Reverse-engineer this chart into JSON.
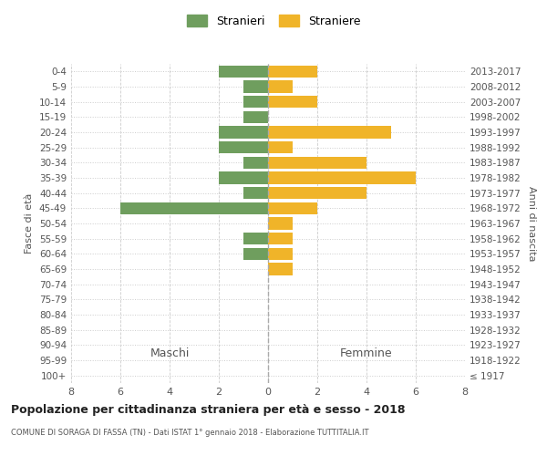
{
  "age_groups": [
    "100+",
    "95-99",
    "90-94",
    "85-89",
    "80-84",
    "75-79",
    "70-74",
    "65-69",
    "60-64",
    "55-59",
    "50-54",
    "45-49",
    "40-44",
    "35-39",
    "30-34",
    "25-29",
    "20-24",
    "15-19",
    "10-14",
    "5-9",
    "0-4"
  ],
  "birth_years": [
    "≤ 1917",
    "1918-1922",
    "1923-1927",
    "1928-1932",
    "1933-1937",
    "1938-1942",
    "1943-1947",
    "1948-1952",
    "1953-1957",
    "1958-1962",
    "1963-1967",
    "1968-1972",
    "1973-1977",
    "1978-1982",
    "1983-1987",
    "1988-1992",
    "1993-1997",
    "1998-2002",
    "2003-2007",
    "2008-2012",
    "2013-2017"
  ],
  "males": [
    0,
    0,
    0,
    0,
    0,
    0,
    0,
    0,
    1,
    1,
    0,
    6,
    1,
    2,
    1,
    2,
    2,
    1,
    1,
    1,
    2
  ],
  "females": [
    0,
    0,
    0,
    0,
    0,
    0,
    0,
    1,
    1,
    1,
    1,
    2,
    4,
    6,
    4,
    1,
    5,
    0,
    2,
    1,
    2
  ],
  "male_color": "#6f9e5e",
  "female_color": "#f0b429",
  "background_color": "#ffffff",
  "grid_color": "#cccccc",
  "title": "Popolazione per cittadinanza straniera per età e sesso - 2018",
  "subtitle": "COMUNE DI SORAGA DI FASSA (TN) - Dati ISTAT 1° gennaio 2018 - Elaborazione TUTTITALIA.IT",
  "xlabel_left": "Maschi",
  "xlabel_right": "Femmine",
  "ylabel_left": "Fasce di età",
  "ylabel_right": "Anni di nascita",
  "legend_male": "Stranieri",
  "legend_female": "Straniere",
  "xlim": 8,
  "bar_height": 0.8
}
